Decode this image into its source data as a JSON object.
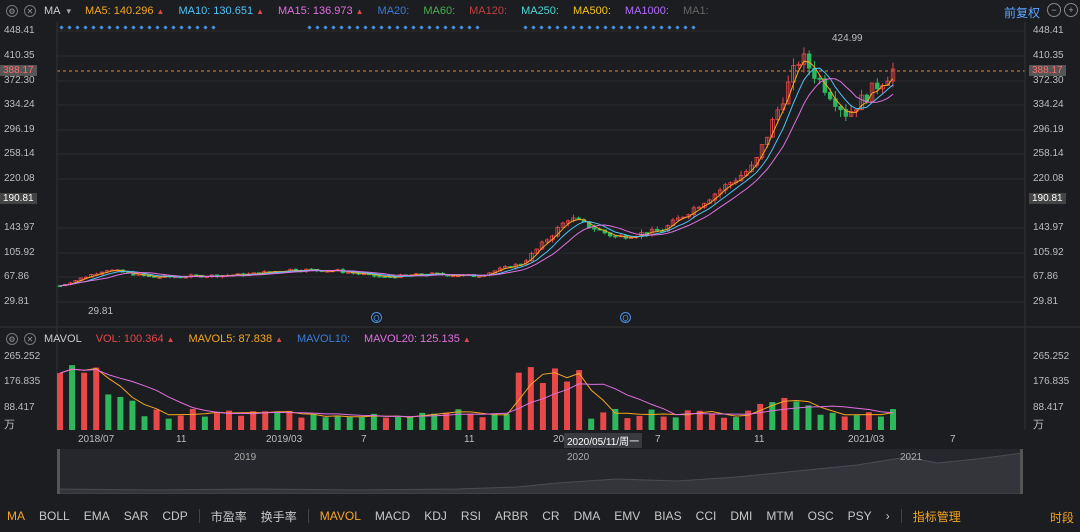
{
  "ma_bar": {
    "indicator": "MA",
    "items": [
      {
        "label": "MA5: 140.296",
        "color": "#f5a623"
      },
      {
        "label": "MA10: 130.651",
        "color": "#4fc3f7"
      },
      {
        "label": "MA15: 136.973",
        "color": "#e070e0"
      },
      {
        "label": "MA20:",
        "color": "#3b7bd6"
      },
      {
        "label": "MA60:",
        "color": "#4caf50"
      },
      {
        "label": "MA120:",
        "color": "#c04040"
      },
      {
        "label": "MA250:",
        "color": "#4fd6d6"
      },
      {
        "label": "MA500:",
        "color": "#f5c518"
      },
      {
        "label": "MA1000:",
        "color": "#b36bff"
      },
      {
        "label": "MA1:",
        "color": "#666666"
      }
    ],
    "adjust_label": "前复权"
  },
  "price_axis": {
    "left": [
      "448.41",
      "410.35",
      "372.30",
      "334.24",
      "296.19",
      "258.14",
      "220.08",
      "143.97",
      "105.92",
      "67.86",
      "29.81"
    ],
    "right": [
      "448.41",
      "410.35",
      "372.30",
      "334.24",
      "296.19",
      "258.14",
      "220.08",
      "143.97",
      "105.92",
      "67.86",
      "29.81"
    ],
    "current_price": "388.17",
    "hover_price": "190.81",
    "high_label": "424.99",
    "low_label": "29.81"
  },
  "vol_bar": {
    "indicator": "MAVOL",
    "items": [
      {
        "label": "VOL: 100.364",
        "color": "#e04848"
      },
      {
        "label": "MAVOL5: 87.838",
        "color": "#f5a623"
      },
      {
        "label": "MAVOL10:",
        "color": "#3b7bd6"
      },
      {
        "label": "MAVOL20: 125.135",
        "color": "#e070e0"
      }
    ]
  },
  "vol_axis": {
    "labels": [
      "265.252",
      "176.835",
      "88.417"
    ],
    "unit": "万"
  },
  "x_axis": {
    "labels": [
      "2018/07",
      "11",
      "2019/03",
      "7",
      "11",
      "202",
      "7",
      "11",
      "2021/03",
      "7"
    ],
    "hover_date": "2020/05/11/周一"
  },
  "navigator": {
    "labels": [
      "2019",
      "2020",
      "2021"
    ]
  },
  "bottom_tabs": [
    {
      "label": "MA",
      "active": true
    },
    {
      "label": "BOLL"
    },
    {
      "label": "EMA"
    },
    {
      "label": "SAR"
    },
    {
      "label": "CDP"
    },
    {
      "label": "市盈率"
    },
    {
      "label": "换手率"
    },
    {
      "label": "MAVOL",
      "active": true
    },
    {
      "label": "MACD"
    },
    {
      "label": "KDJ"
    },
    {
      "label": "RSI"
    },
    {
      "label": "ARBR"
    },
    {
      "label": "CR"
    },
    {
      "label": "DMA"
    },
    {
      "label": "EMV"
    },
    {
      "label": "BIAS"
    },
    {
      "label": "CCI"
    },
    {
      "label": "DMI"
    },
    {
      "label": "MTM"
    },
    {
      "label": "OSC"
    },
    {
      "label": "PSY"
    }
  ],
  "bottom_extra": {
    "more": "›",
    "manage": "指标管理",
    "period": "时段"
  },
  "chart_data": {
    "type": "candlestick",
    "ylim": [
      29.81,
      448.41
    ],
    "close_trend": [
      {
        "x": "2018/06",
        "y": 55
      },
      {
        "x": "2018/07",
        "y": 80
      },
      {
        "x": "2018/09",
        "y": 68
      },
      {
        "x": "2018/11",
        "y": 70
      },
      {
        "x": "2019/01",
        "y": 72
      },
      {
        "x": "2019/03",
        "y": 80
      },
      {
        "x": "2019/05",
        "y": 78
      },
      {
        "x": "2019/07",
        "y": 68
      },
      {
        "x": "2019/09",
        "y": 73
      },
      {
        "x": "2019/11",
        "y": 70
      },
      {
        "x": "2020/01",
        "y": 90
      },
      {
        "x": "2020/03",
        "y": 160
      },
      {
        "x": "2020/05",
        "y": 130
      },
      {
        "x": "2020/07",
        "y": 140
      },
      {
        "x": "2020/09",
        "y": 190
      },
      {
        "x": "2020/11",
        "y": 240
      },
      {
        "x": "2021/01",
        "y": 410
      },
      {
        "x": "2021/02",
        "y": 320
      },
      {
        "x": "2021/03",
        "y": 388.17
      }
    ]
  }
}
